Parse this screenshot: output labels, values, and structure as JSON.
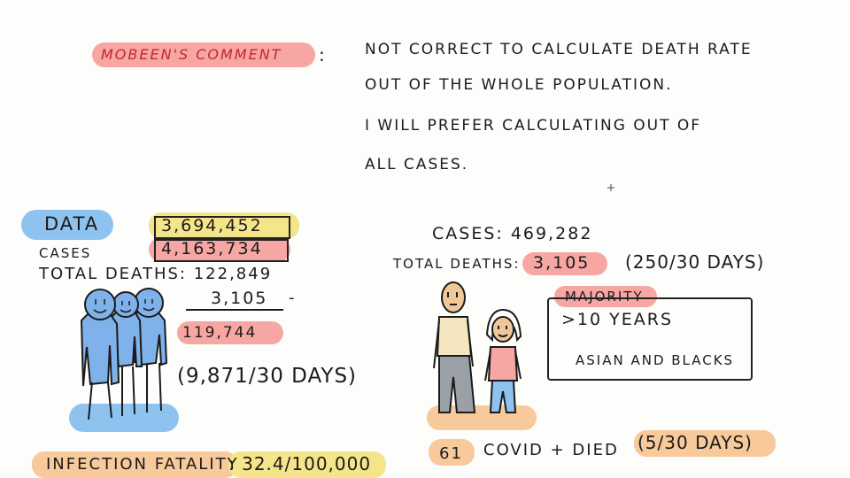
{
  "comment": {
    "label": "MOBEEN'S   COMMENT",
    "colon": ":",
    "line1": "NOT  CORRECT  TO  CALCULATE  DEATH  RATE",
    "line2": "OUT  OF  THE  WHOLE  POPULATION.",
    "line3": "I  WILL  PREFER  CALCULATING  OUT  OF",
    "line4": "ALL  CASES."
  },
  "left": {
    "data_label": "DATA",
    "cases_label": "CASES",
    "cases_value_1": "3,694,452",
    "cases_value_2": "4,163,734",
    "total_deaths": "TOTAL DEATHS: 122,849",
    "subtract_value": "3,105",
    "minus_sign": "-",
    "result_value": "119,744",
    "rate": "(9,871/30 DAYS)",
    "ifr_label": "INFECTION FATALITY",
    "ifr_value": ": 32.4/100,000"
  },
  "right": {
    "cases": "CASES: 469,282",
    "total_deaths_label": "TOTAL DEATHS:",
    "total_deaths_value": "3,105",
    "rate": "(250/30 DAYS)",
    "majority_label": "MAJORITY",
    "majority_line1": ">10  YEARS",
    "majority_line2": "ASIAN AND BLACKS",
    "covid_count": "61",
    "covid_text": "COVID +   DIED",
    "covid_rate": "(5/30 DAYS)"
  },
  "colors": {
    "red_highlight": "#f6a7a3",
    "blue_highlight": "#8ec3ef",
    "yellow_highlight": "#f5e58a",
    "orange_highlight": "#f8c99a",
    "ink": "#1b1b1b"
  }
}
